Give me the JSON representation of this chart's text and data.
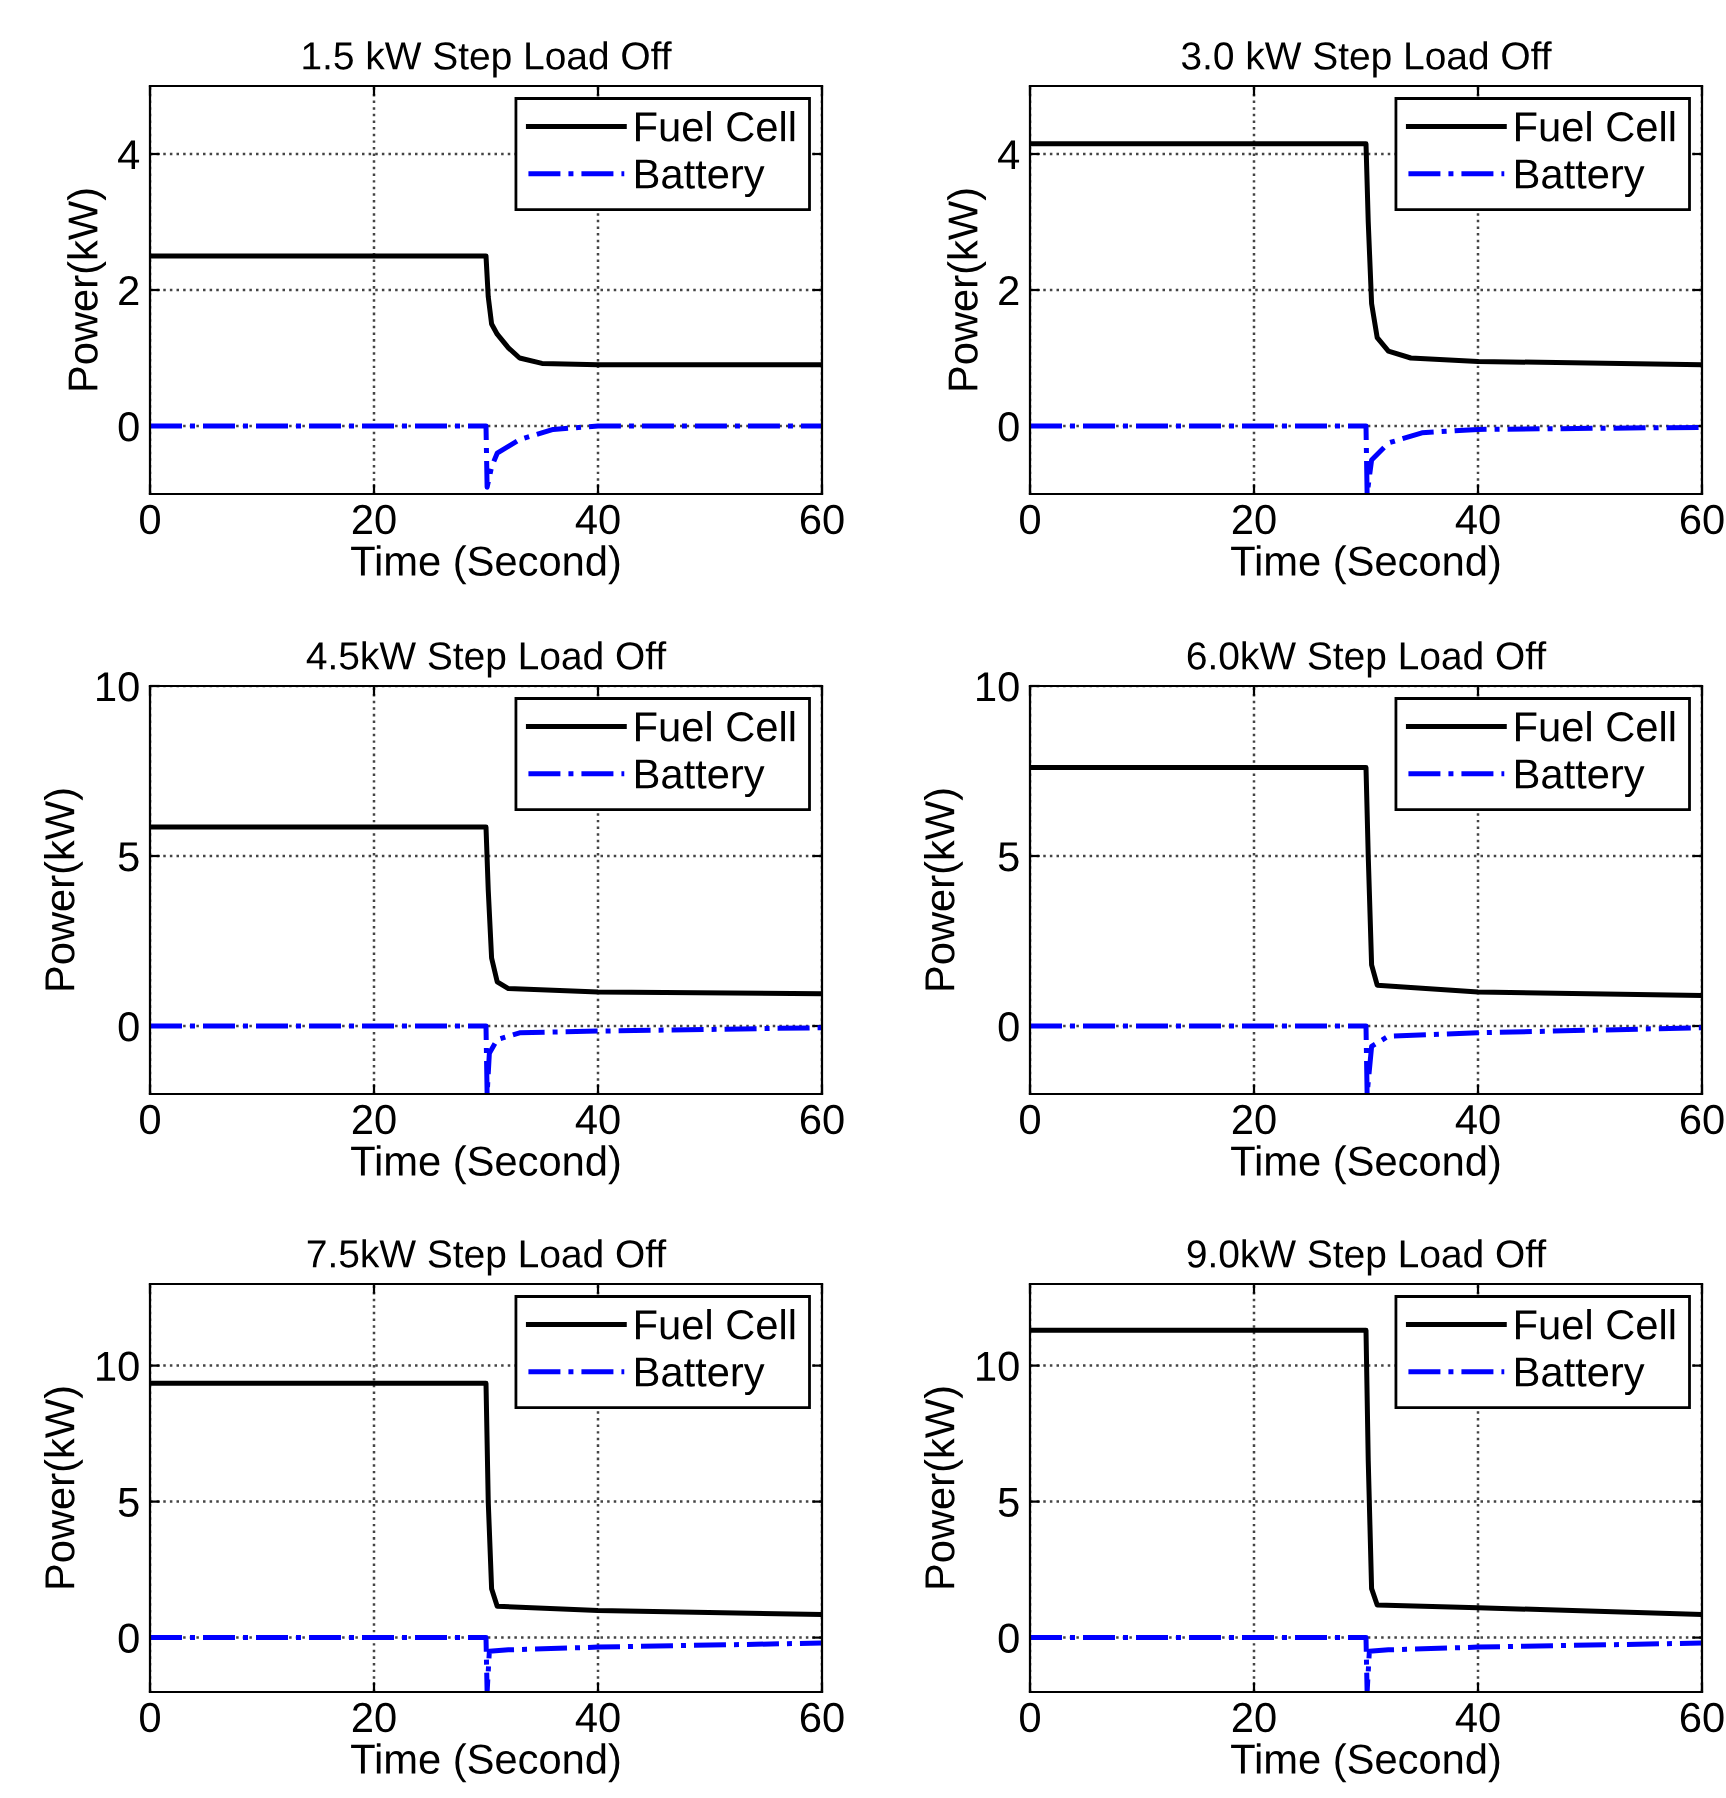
{
  "chart_data": [
    {
      "type": "line",
      "title": "1.5 kW Step Load Off",
      "xlabel": "Time (Second)",
      "ylabel": "Power(kW)",
      "xlim": [
        0,
        60
      ],
      "xticks": [
        0,
        20,
        40,
        60
      ],
      "ylim": [
        -1,
        5
      ],
      "yticks": [
        0,
        2,
        4
      ],
      "grid": true,
      "legend": "top right",
      "series": [
        {
          "name": "Fuel Cell",
          "color": "#000000",
          "line_style": "solid",
          "x": [
            0,
            30,
            30.2,
            30.5,
            31,
            32,
            33,
            35,
            40,
            60
          ],
          "values": [
            2.5,
            2.5,
            1.9,
            1.5,
            1.35,
            1.15,
            1.0,
            0.92,
            0.9,
            0.9
          ]
        },
        {
          "name": "Battery",
          "color": "#0000ff",
          "line_style": "dashdot",
          "x": [
            0,
            30,
            30.1,
            30.5,
            31,
            33,
            36,
            40,
            60
          ],
          "values": [
            0,
            0,
            -0.9,
            -0.6,
            -0.4,
            -0.2,
            -0.05,
            0,
            0
          ]
        }
      ]
    },
    {
      "type": "line",
      "title": "3.0 kW Step Load Off",
      "xlabel": "Time (Second)",
      "ylabel": "Power(kW)",
      "xlim": [
        0,
        60
      ],
      "xticks": [
        0,
        20,
        40,
        60
      ],
      "ylim": [
        -1,
        5
      ],
      "yticks": [
        0,
        2,
        4
      ],
      "grid": true,
      "legend": "top right",
      "series": [
        {
          "name": "Fuel Cell",
          "color": "#000000",
          "line_style": "solid",
          "x": [
            0,
            30,
            30.2,
            30.5,
            31,
            32,
            34,
            40,
            60
          ],
          "values": [
            4.15,
            4.15,
            3.0,
            1.8,
            1.3,
            1.1,
            1.0,
            0.95,
            0.9
          ]
        },
        {
          "name": "Battery",
          "color": "#0000ff",
          "line_style": "dashdot",
          "x": [
            0,
            30,
            30.1,
            30.5,
            32,
            35,
            40,
            60
          ],
          "values": [
            0,
            0,
            -1,
            -0.5,
            -0.25,
            -0.1,
            -0.05,
            -0.02
          ]
        }
      ]
    },
    {
      "type": "line",
      "title": "4.5kW Step Load Off",
      "xlabel": "Time (Second)",
      "ylabel": "Power(kW)",
      "xlim": [
        0,
        60
      ],
      "xticks": [
        0,
        20,
        40,
        60
      ],
      "ylim": [
        -2,
        10
      ],
      "yticks": [
        0,
        5,
        10
      ],
      "grid": true,
      "legend": "top right",
      "series": [
        {
          "name": "Fuel Cell",
          "color": "#000000",
          "line_style": "solid",
          "x": [
            0,
            30,
            30.2,
            30.5,
            31,
            32,
            40,
            60
          ],
          "values": [
            5.85,
            5.85,
            4.0,
            2.0,
            1.3,
            1.1,
            1.0,
            0.95
          ]
        },
        {
          "name": "Battery",
          "color": "#0000ff",
          "line_style": "dashdot",
          "x": [
            0,
            30,
            30.1,
            30.3,
            31,
            33,
            40,
            60
          ],
          "values": [
            0,
            0,
            -2,
            -0.8,
            -0.4,
            -0.2,
            -0.15,
            -0.05
          ]
        }
      ]
    },
    {
      "type": "line",
      "title": "6.0kW Step Load Off",
      "xlabel": "Time (Second)",
      "ylabel": "Power(kW)",
      "xlim": [
        0,
        60
      ],
      "xticks": [
        0,
        20,
        40,
        60
      ],
      "ylim": [
        -2,
        10
      ],
      "yticks": [
        0,
        5,
        10
      ],
      "grid": true,
      "legend": "top right",
      "series": [
        {
          "name": "Fuel Cell",
          "color": "#000000",
          "line_style": "solid",
          "x": [
            0,
            30,
            30.2,
            30.5,
            31,
            40,
            60
          ],
          "values": [
            7.6,
            7.6,
            5.0,
            1.8,
            1.2,
            1.0,
            0.9
          ]
        },
        {
          "name": "Battery",
          "color": "#0000ff",
          "line_style": "dashdot",
          "x": [
            0,
            30,
            30.1,
            30.5,
            32,
            40,
            60
          ],
          "values": [
            0,
            0,
            -2,
            -0.6,
            -0.3,
            -0.2,
            -0.05
          ]
        }
      ]
    },
    {
      "type": "line",
      "title": "7.5kW Step Load Off",
      "xlabel": "Time (Second)",
      "ylabel": "Power(kW)",
      "xlim": [
        0,
        60
      ],
      "xticks": [
        0,
        20,
        40,
        60
      ],
      "ylim": [
        -2,
        13
      ],
      "yticks": [
        0,
        5,
        10
      ],
      "grid": true,
      "legend": "top right",
      "series": [
        {
          "name": "Fuel Cell",
          "color": "#000000",
          "line_style": "solid",
          "x": [
            0,
            30,
            30.2,
            30.5,
            31,
            40,
            60
          ],
          "values": [
            9.35,
            9.35,
            5.0,
            1.8,
            1.15,
            1.0,
            0.85
          ]
        },
        {
          "name": "Battery",
          "color": "#0000ff",
          "line_style": "dashdot",
          "x": [
            0,
            30,
            30.1,
            30.3,
            32,
            40,
            60
          ],
          "values": [
            0,
            0,
            -2,
            -0.5,
            -0.45,
            -0.35,
            -0.2
          ]
        }
      ]
    },
    {
      "type": "line",
      "title": "9.0kW Step Load Off",
      "xlabel": "Time (Second)",
      "ylabel": "Power(kW)",
      "xlim": [
        0,
        60
      ],
      "xticks": [
        0,
        20,
        40,
        60
      ],
      "ylim": [
        -2,
        13
      ],
      "yticks": [
        0,
        5,
        10
      ],
      "grid": true,
      "legend": "top right",
      "series": [
        {
          "name": "Fuel Cell",
          "color": "#000000",
          "line_style": "solid",
          "x": [
            0,
            30,
            30.2,
            30.5,
            31,
            40,
            60
          ],
          "values": [
            11.3,
            11.3,
            6.5,
            1.8,
            1.2,
            1.1,
            0.85
          ]
        },
        {
          "name": "Battery",
          "color": "#0000ff",
          "line_style": "dashdot",
          "x": [
            0,
            30,
            30.1,
            30.3,
            32,
            40,
            60
          ],
          "values": [
            0,
            0,
            -2,
            -0.5,
            -0.45,
            -0.35,
            -0.2
          ]
        }
      ]
    }
  ]
}
